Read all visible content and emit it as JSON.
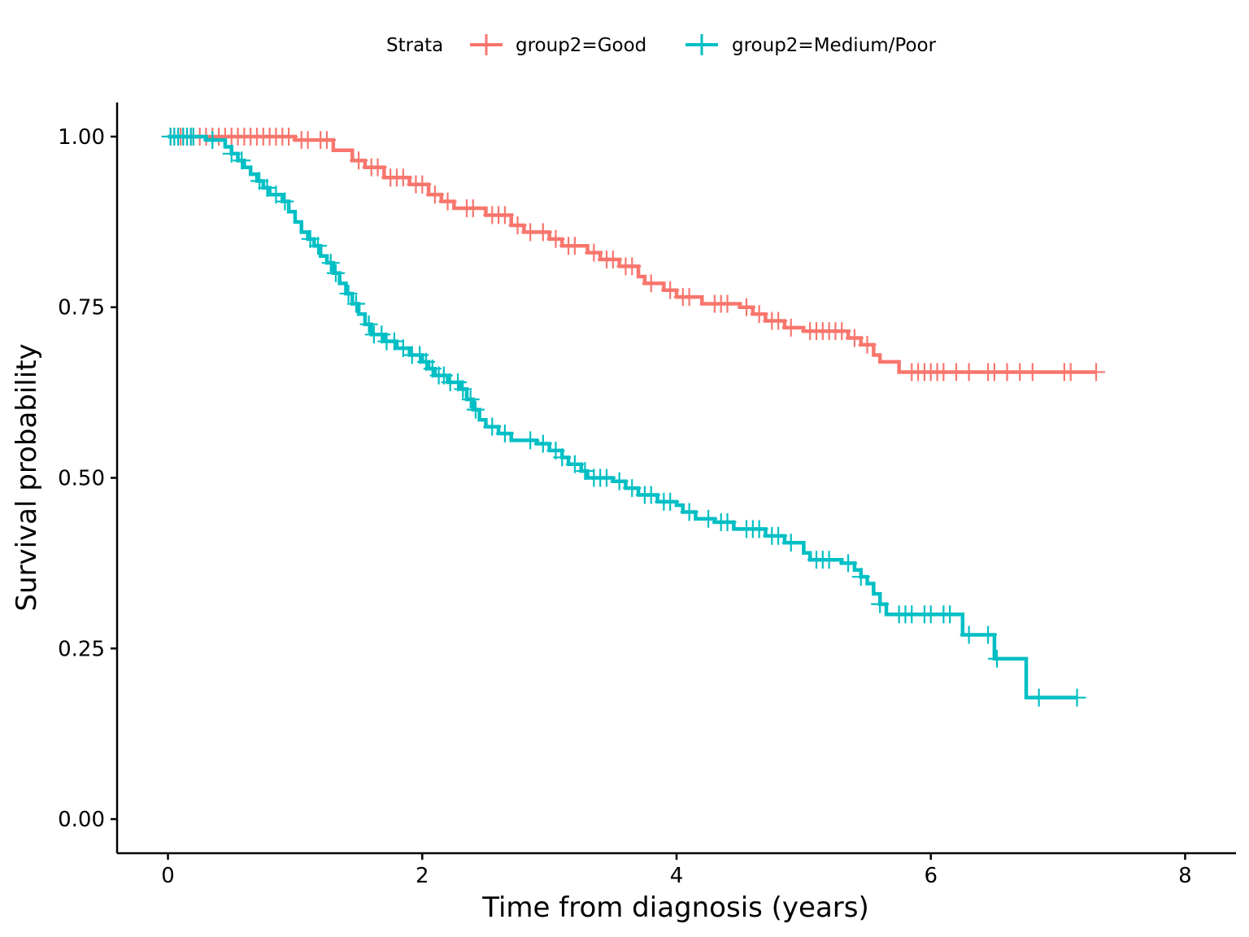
{
  "chart_data": {
    "type": "line",
    "subtype": "kaplan-meier step",
    "title": "",
    "xlabel": "Time from diagnosis (years)",
    "ylabel": "Survival probability",
    "xlim": [
      -0.4,
      8.4
    ],
    "ylim": [
      -0.05,
      1.05
    ],
    "xticks": [
      0,
      2,
      4,
      6,
      8
    ],
    "xtick_labels": [
      "0",
      "2",
      "4",
      "6",
      "8"
    ],
    "yticks": [
      0,
      0.25,
      0.5,
      0.75,
      1.0
    ],
    "ytick_labels": [
      "0.00",
      "0.25",
      "0.50",
      "0.75",
      "1.00"
    ],
    "grid": false,
    "legend": {
      "title": "Strata",
      "placement": "top",
      "entries": [
        "group2=Good",
        "group2=Medium/Poor"
      ]
    },
    "series": [
      {
        "name": "group2=Good",
        "color": "#F8766D",
        "steps": [
          [
            0,
            1.0
          ],
          [
            1.0,
            0.995
          ],
          [
            1.3,
            0.98
          ],
          [
            1.45,
            0.965
          ],
          [
            1.55,
            0.955
          ],
          [
            1.7,
            0.94
          ],
          [
            1.9,
            0.93
          ],
          [
            2.05,
            0.915
          ],
          [
            2.15,
            0.905
          ],
          [
            2.25,
            0.895
          ],
          [
            2.5,
            0.885
          ],
          [
            2.7,
            0.87
          ],
          [
            2.8,
            0.86
          ],
          [
            3.0,
            0.85
          ],
          [
            3.1,
            0.84
          ],
          [
            3.3,
            0.83
          ],
          [
            3.4,
            0.82
          ],
          [
            3.55,
            0.81
          ],
          [
            3.7,
            0.795
          ],
          [
            3.75,
            0.785
          ],
          [
            3.9,
            0.775
          ],
          [
            4.0,
            0.765
          ],
          [
            4.2,
            0.755
          ],
          [
            4.5,
            0.75
          ],
          [
            4.6,
            0.74
          ],
          [
            4.7,
            0.73
          ],
          [
            4.85,
            0.72
          ],
          [
            5.0,
            0.715
          ],
          [
            5.35,
            0.705
          ],
          [
            5.45,
            0.695
          ],
          [
            5.55,
            0.68
          ],
          [
            5.6,
            0.67
          ],
          [
            5.75,
            0.655
          ]
        ],
        "end_time": 7.3,
        "censor_times": [
          0.02,
          0.05,
          0.08,
          0.1,
          0.12,
          0.15,
          0.18,
          0.2,
          0.25,
          0.3,
          0.35,
          0.4,
          0.45,
          0.5,
          0.55,
          0.6,
          0.65,
          0.7,
          0.75,
          0.8,
          0.85,
          0.9,
          0.95,
          1.05,
          1.1,
          1.2,
          1.25,
          1.5,
          1.6,
          1.65,
          1.75,
          1.8,
          1.85,
          1.95,
          2.0,
          2.1,
          2.2,
          2.35,
          2.4,
          2.55,
          2.6,
          2.65,
          2.75,
          2.85,
          2.95,
          3.05,
          3.15,
          3.2,
          3.35,
          3.45,
          3.5,
          3.6,
          3.65,
          3.8,
          3.95,
          4.05,
          4.1,
          4.3,
          4.35,
          4.4,
          4.55,
          4.65,
          4.75,
          4.8,
          4.9,
          5.05,
          5.1,
          5.15,
          5.2,
          5.25,
          5.3,
          5.4,
          5.5,
          5.85,
          5.9,
          5.95,
          6.0,
          6.05,
          6.1,
          6.2,
          6.3,
          6.45,
          6.5,
          6.6,
          6.7,
          6.8,
          7.05,
          7.1,
          7.3
        ]
      },
      {
        "name": "group2=Medium/Poor",
        "color": "#00BFC4",
        "steps": [
          [
            0,
            1.0
          ],
          [
            0.3,
            0.995
          ],
          [
            0.45,
            0.985
          ],
          [
            0.5,
            0.975
          ],
          [
            0.55,
            0.965
          ],
          [
            0.6,
            0.955
          ],
          [
            0.65,
            0.945
          ],
          [
            0.7,
            0.935
          ],
          [
            0.75,
            0.925
          ],
          [
            0.8,
            0.915
          ],
          [
            0.9,
            0.905
          ],
          [
            0.95,
            0.89
          ],
          [
            1.0,
            0.875
          ],
          [
            1.05,
            0.86
          ],
          [
            1.1,
            0.85
          ],
          [
            1.15,
            0.84
          ],
          [
            1.2,
            0.825
          ],
          [
            1.25,
            0.815
          ],
          [
            1.3,
            0.8
          ],
          [
            1.35,
            0.785
          ],
          [
            1.4,
            0.77
          ],
          [
            1.45,
            0.755
          ],
          [
            1.5,
            0.74
          ],
          [
            1.55,
            0.725
          ],
          [
            1.6,
            0.71
          ],
          [
            1.7,
            0.7
          ],
          [
            1.8,
            0.69
          ],
          [
            1.9,
            0.68
          ],
          [
            2.0,
            0.67
          ],
          [
            2.05,
            0.66
          ],
          [
            2.1,
            0.65
          ],
          [
            2.2,
            0.64
          ],
          [
            2.3,
            0.63
          ],
          [
            2.35,
            0.615
          ],
          [
            2.4,
            0.6
          ],
          [
            2.45,
            0.585
          ],
          [
            2.5,
            0.575
          ],
          [
            2.6,
            0.565
          ],
          [
            2.7,
            0.555
          ],
          [
            2.9,
            0.55
          ],
          [
            3.0,
            0.54
          ],
          [
            3.1,
            0.53
          ],
          [
            3.15,
            0.52
          ],
          [
            3.25,
            0.51
          ],
          [
            3.3,
            0.5
          ],
          [
            3.5,
            0.495
          ],
          [
            3.6,
            0.485
          ],
          [
            3.7,
            0.475
          ],
          [
            3.85,
            0.465
          ],
          [
            4.0,
            0.46
          ],
          [
            4.05,
            0.45
          ],
          [
            4.15,
            0.44
          ],
          [
            4.3,
            0.435
          ],
          [
            4.45,
            0.425
          ],
          [
            4.7,
            0.415
          ],
          [
            4.85,
            0.405
          ],
          [
            5.0,
            0.39
          ],
          [
            5.05,
            0.38
          ],
          [
            5.3,
            0.375
          ],
          [
            5.4,
            0.365
          ],
          [
            5.45,
            0.355
          ],
          [
            5.5,
            0.345
          ],
          [
            5.55,
            0.33
          ],
          [
            5.6,
            0.315
          ],
          [
            5.65,
            0.3
          ],
          [
            6.25,
            0.27
          ],
          [
            6.5,
            0.235
          ],
          [
            6.75,
            0.178
          ]
        ],
        "end_time": 7.15,
        "censor_times": [
          0.02,
          0.05,
          0.08,
          0.12,
          0.15,
          0.18,
          0.2,
          0.35,
          0.5,
          0.58,
          0.72,
          0.78,
          0.85,
          0.92,
          1.12,
          1.18,
          1.28,
          1.32,
          1.42,
          1.48,
          1.58,
          1.62,
          1.68,
          1.72,
          1.78,
          1.85,
          1.92,
          1.98,
          2.03,
          2.08,
          2.13,
          2.17,
          2.22,
          2.28,
          2.32,
          2.38,
          2.42,
          2.55,
          2.65,
          2.85,
          2.95,
          3.05,
          3.1,
          3.2,
          3.28,
          3.35,
          3.4,
          3.45,
          3.55,
          3.65,
          3.75,
          3.8,
          3.9,
          3.95,
          4.1,
          4.25,
          4.35,
          4.4,
          4.55,
          4.6,
          4.65,
          4.75,
          4.8,
          4.9,
          5.1,
          5.15,
          5.2,
          5.35,
          5.45,
          5.6,
          5.75,
          5.8,
          5.85,
          5.95,
          6.0,
          6.1,
          6.15,
          6.3,
          6.45,
          6.52,
          6.85,
          7.15
        ]
      }
    ]
  }
}
